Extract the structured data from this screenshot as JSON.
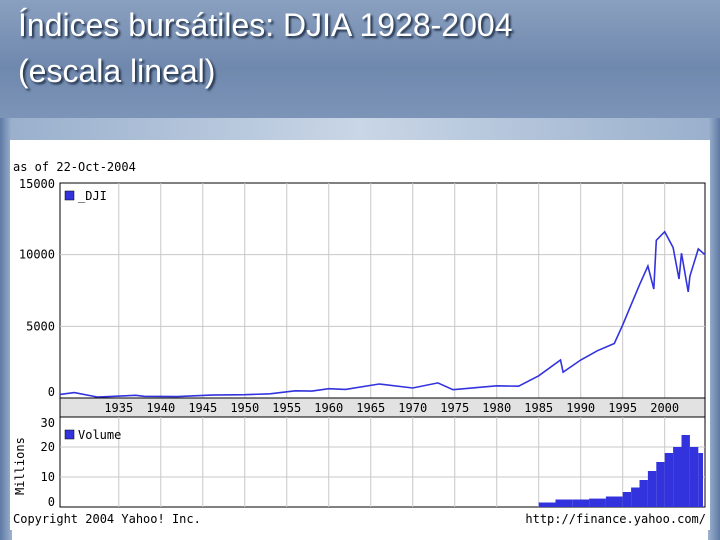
{
  "slide": {
    "title_line1": "Índices bursátiles: DJIA 1928-2004",
    "title_line2": "(escala lineal)"
  },
  "colors": {
    "series": "#3333dd",
    "grid": "#c8c8c8",
    "plot_bg": "#ffffff"
  },
  "chart_data": [
    {
      "type": "line",
      "header": "as of 22-Oct-2004",
      "legend": "_DJI",
      "legend_position": "top-left",
      "grid": true,
      "xlim": [
        1928,
        2004.8
      ],
      "ylim": [
        0,
        15000
      ],
      "yticks": [
        0,
        5000,
        10000,
        15000
      ],
      "xticks": [
        1935,
        1940,
        1945,
        1950,
        1955,
        1960,
        1965,
        1970,
        1975,
        1980,
        1985,
        1990,
        1995,
        2000
      ],
      "series": [
        {
          "name": "_DJI",
          "x": [
            1928,
            1929.7,
            1932.5,
            1937,
            1938,
            1942,
            1946,
            1950,
            1953,
            1956,
            1958,
            1960,
            1962,
            1966,
            1970,
            1973,
            1974.8,
            1980,
            1982.6,
            1985,
            1987.6,
            1987.9,
            1990,
            1992,
            1994,
            1995,
            1996,
            1997,
            1998,
            1998.7,
            1999,
            2000,
            2001,
            2001.7,
            2002,
            2002.8,
            2003,
            2004,
            2004.8
          ],
          "y": [
            250,
            380,
            60,
            190,
            120,
            100,
            200,
            230,
            290,
            500,
            480,
            650,
            600,
            980,
            700,
            1050,
            580,
            850,
            820,
            1550,
            2650,
            1800,
            2650,
            3300,
            3800,
            5100,
            6500,
            7900,
            9200,
            7600,
            11000,
            11600,
            10500,
            8300,
            10100,
            7400,
            8500,
            10400,
            10000
          ]
        }
      ]
    },
    {
      "type": "bar",
      "legend": "Volume",
      "legend_position": "top-left",
      "ylabel": "Millions",
      "grid": true,
      "xlim": [
        1928,
        2004.8
      ],
      "ylim": [
        0,
        30
      ],
      "yticks": [
        0,
        10,
        20,
        30
      ],
      "series": [
        {
          "name": "Volume",
          "x": [
            1985,
            1987,
            1989,
            1991,
            1993,
            1995,
            1996,
            1997,
            1998,
            1999,
            2000,
            2001,
            2002,
            2003,
            2004
          ],
          "y": [
            1.5,
            2.5,
            2.5,
            2.8,
            3.5,
            5,
            6.5,
            9,
            12,
            15,
            18,
            20,
            24,
            20,
            18
          ]
        }
      ]
    }
  ],
  "footer": {
    "copyright": "Copyright 2004 Yahoo! Inc.",
    "url": "http://finance.yahoo.com/"
  }
}
